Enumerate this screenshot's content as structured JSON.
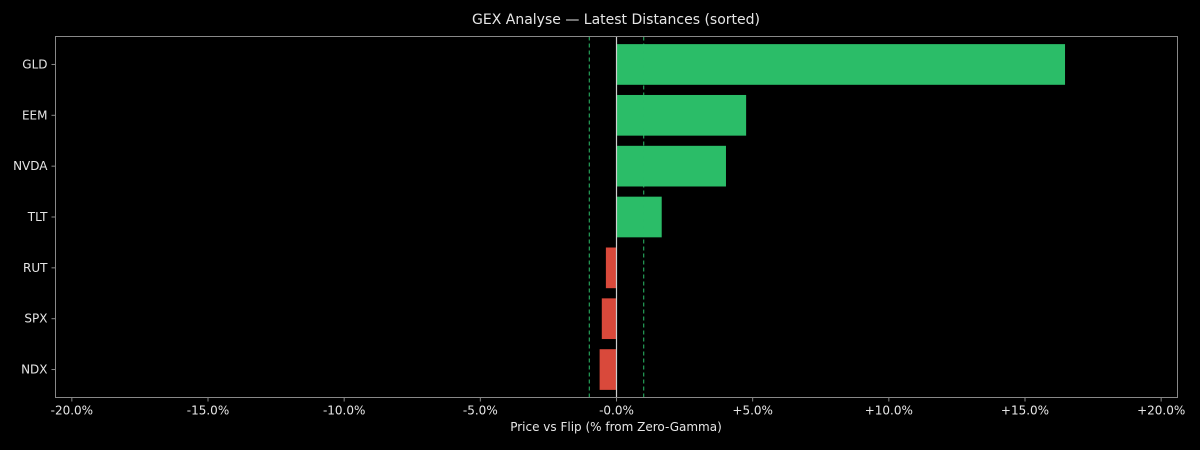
{
  "chart_data": {
    "type": "bar",
    "orientation": "horizontal",
    "title": "GEX Analyse — Latest Distances (sorted)",
    "xlabel": "Price vs Flip (% from Zero-Gamma)",
    "ylabel": "",
    "categories": [
      "GLD",
      "EEM",
      "NVDA",
      "TLT",
      "RUT",
      "SPX",
      "NDX"
    ],
    "values": [
      16.47,
      4.76,
      4.02,
      1.66,
      -0.39,
      -0.54,
      -0.62
    ],
    "xlim": [
      -20.6,
      20.6
    ],
    "xticks": [
      -20,
      -15,
      -10,
      -5,
      0,
      5,
      10,
      15,
      20
    ],
    "xtick_labels": [
      "-20.0%",
      "-15.0%",
      "-10.0%",
      "-5.0%",
      "-0.0%",
      "+5.0%",
      "+10.0%",
      "+15.0%",
      "+20.0%"
    ],
    "reference_lines": [
      -1,
      0,
      1
    ],
    "grid": false,
    "colors": {
      "positive": "#2bbd68",
      "negative": "#d9493b",
      "threshold": "#2bbd68",
      "zero": "#cfcfcf",
      "background": "#000000",
      "axes": "#888888"
    }
  }
}
